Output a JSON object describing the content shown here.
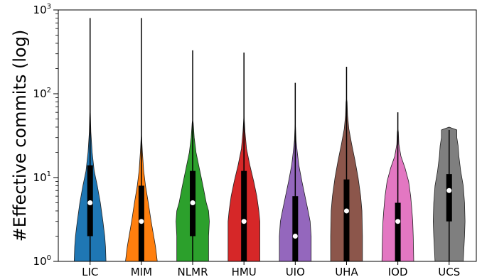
{
  "chart_data": {
    "type": "violin",
    "ylabel": "#Effective commits (log)",
    "yscale": "log",
    "ylim": [
      1,
      1000
    ],
    "grid": false,
    "yticks": [
      {
        "value": 1,
        "base": "10",
        "exp": "0"
      },
      {
        "value": 10,
        "base": "10",
        "exp": "1"
      },
      {
        "value": 100,
        "base": "10",
        "exp": "2"
      },
      {
        "value": 1000,
        "base": "10",
        "exp": "3"
      }
    ],
    "categories": [
      "LIC",
      "MIM",
      "NLMR",
      "HMU",
      "UIO",
      "UHA",
      "IOD",
      "UCS"
    ],
    "series": [
      {
        "category": "LIC",
        "color": "#1f77b4",
        "min": 1,
        "q1": 2,
        "median": 5,
        "q3": 14,
        "max": 800,
        "density": [
          [
            1,
            0.62
          ],
          [
            1.5,
            0.6
          ],
          [
            2,
            0.57
          ],
          [
            3,
            0.5
          ],
          [
            5,
            0.4
          ],
          [
            8,
            0.28
          ],
          [
            12,
            0.16
          ],
          [
            20,
            0.08
          ],
          [
            35,
            0.03
          ],
          [
            60,
            0.01
          ]
        ]
      },
      {
        "category": "MIM",
        "color": "#ff7f0e",
        "min": 1,
        "q1": 1,
        "median": 3,
        "q3": 8,
        "max": 800,
        "density": [
          [
            1,
            0.62
          ],
          [
            1.5,
            0.55
          ],
          [
            2,
            0.48
          ],
          [
            3,
            0.38
          ],
          [
            5,
            0.27
          ],
          [
            8,
            0.16
          ],
          [
            12,
            0.09
          ],
          [
            20,
            0.04
          ],
          [
            30,
            0.01
          ]
        ]
      },
      {
        "category": "NLMR",
        "color": "#2ca02c",
        "min": 1,
        "q1": 2,
        "median": 5,
        "q3": 12,
        "max": 330,
        "density": [
          [
            1,
            0.62
          ],
          [
            2,
            0.62
          ],
          [
            3,
            0.65
          ],
          [
            4,
            0.62
          ],
          [
            5,
            0.53
          ],
          [
            8,
            0.4
          ],
          [
            12,
            0.28
          ],
          [
            20,
            0.13
          ],
          [
            30,
            0.06
          ],
          [
            45,
            0.02
          ]
        ]
      },
      {
        "category": "HMU",
        "color": "#d62728",
        "min": 1,
        "q1": 1,
        "median": 3,
        "q3": 12,
        "max": 310,
        "density": [
          [
            1,
            0.62
          ],
          [
            2,
            0.62
          ],
          [
            3,
            0.62
          ],
          [
            4,
            0.58
          ],
          [
            6,
            0.5
          ],
          [
            9,
            0.38
          ],
          [
            14,
            0.23
          ],
          [
            22,
            0.1
          ],
          [
            35,
            0.04
          ],
          [
            50,
            0.01
          ]
        ]
      },
      {
        "category": "UIO",
        "color": "#9467bd",
        "min": 1,
        "q1": 1,
        "median": 2,
        "q3": 6,
        "max": 135,
        "density": [
          [
            1,
            0.62
          ],
          [
            2,
            0.62
          ],
          [
            3,
            0.58
          ],
          [
            4,
            0.5
          ],
          [
            6,
            0.38
          ],
          [
            9,
            0.26
          ],
          [
            14,
            0.14
          ],
          [
            20,
            0.08
          ],
          [
            28,
            0.03
          ],
          [
            40,
            0.01
          ]
        ]
      },
      {
        "category": "UHA",
        "color": "#8c564b",
        "min": 1,
        "q1": 1,
        "median": 4,
        "q3": 9.5,
        "max": 210,
        "density": [
          [
            1,
            0.62
          ],
          [
            2,
            0.62
          ],
          [
            4,
            0.6
          ],
          [
            6,
            0.55
          ],
          [
            10,
            0.45
          ],
          [
            16,
            0.33
          ],
          [
            25,
            0.2
          ],
          [
            38,
            0.09
          ],
          [
            55,
            0.04
          ],
          [
            80,
            0.02
          ]
        ]
      },
      {
        "category": "IOD",
        "color": "#e377c2",
        "min": 1,
        "q1": 1,
        "median": 3,
        "q3": 5,
        "max": 60,
        "density": [
          [
            1,
            0.62
          ],
          [
            2,
            0.6
          ],
          [
            3,
            0.58
          ],
          [
            4,
            0.55
          ],
          [
            6,
            0.5
          ],
          [
            9,
            0.42
          ],
          [
            13,
            0.28
          ],
          [
            18,
            0.12
          ],
          [
            25,
            0.04
          ],
          [
            35,
            0.02
          ]
        ]
      },
      {
        "category": "UCS",
        "color": "#7f7f7f",
        "min": 1,
        "q1": 3,
        "median": 7,
        "q3": 11,
        "max": 37,
        "density": [
          [
            1,
            0.55
          ],
          [
            2,
            0.6
          ],
          [
            3,
            0.62
          ],
          [
            5,
            0.6
          ],
          [
            8,
            0.55
          ],
          [
            12,
            0.45
          ],
          [
            18,
            0.38
          ],
          [
            24,
            0.35
          ],
          [
            30,
            0.3
          ],
          [
            37,
            0.3
          ]
        ]
      }
    ]
  }
}
